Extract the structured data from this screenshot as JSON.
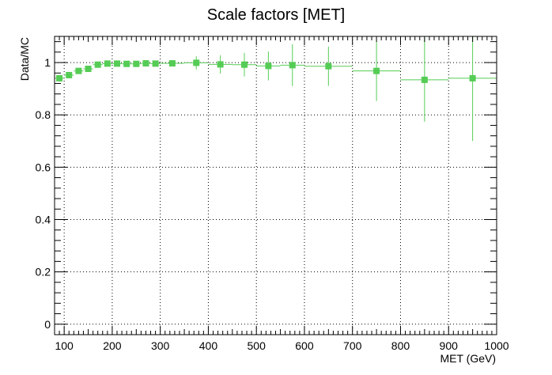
{
  "chart_data": {
    "type": "scatter",
    "title": "Scale factors [MET]",
    "xlabel": "MET (GeV)",
    "ylabel": "Data/MC",
    "xlim": [
      80,
      1000
    ],
    "ylim": [
      -0.04,
      1.1
    ],
    "grid": true,
    "legend": "none",
    "marker_color": "#55cc55",
    "x_ticks": [
      "100",
      "200",
      "300",
      "400",
      "500",
      "600",
      "700",
      "800",
      "900",
      "1000"
    ],
    "y_ticks": [
      "0",
      "0.2",
      "0.4",
      "0.6",
      "0.8",
      "1"
    ],
    "series": [
      {
        "points": [
          {
            "x": 90,
            "xlo": 80,
            "xhi": 100,
            "y": 0.94,
            "err": 0.006
          },
          {
            "x": 110,
            "xlo": 100,
            "xhi": 120,
            "y": 0.952,
            "err": 0.006
          },
          {
            "x": 130,
            "xlo": 120,
            "xhi": 140,
            "y": 0.968,
            "err": 0.006
          },
          {
            "x": 150,
            "xlo": 140,
            "xhi": 160,
            "y": 0.976,
            "err": 0.006
          },
          {
            "x": 170,
            "xlo": 160,
            "xhi": 180,
            "y": 0.992,
            "err": 0.006
          },
          {
            "x": 190,
            "xlo": 180,
            "xhi": 200,
            "y": 0.996,
            "err": 0.006
          },
          {
            "x": 210,
            "xlo": 200,
            "xhi": 220,
            "y": 0.996,
            "err": 0.006
          },
          {
            "x": 230,
            "xlo": 220,
            "xhi": 240,
            "y": 0.995,
            "err": 0.006
          },
          {
            "x": 250,
            "xlo": 240,
            "xhi": 260,
            "y": 0.995,
            "err": 0.007
          },
          {
            "x": 270,
            "xlo": 260,
            "xhi": 280,
            "y": 0.997,
            "err": 0.009
          },
          {
            "x": 290,
            "xlo": 280,
            "xhi": 300,
            "y": 0.996,
            "err": 0.01
          },
          {
            "x": 325,
            "xlo": 300,
            "xhi": 350,
            "y": 0.997,
            "err": 0.012
          },
          {
            "x": 375,
            "xlo": 350,
            "xhi": 400,
            "y": 0.999,
            "err": 0.025
          },
          {
            "x": 425,
            "xlo": 400,
            "xhi": 450,
            "y": 0.993,
            "err": 0.035
          },
          {
            "x": 475,
            "xlo": 450,
            "xhi": 500,
            "y": 0.992,
            "err": 0.045
          },
          {
            "x": 525,
            "xlo": 500,
            "xhi": 550,
            "y": 0.987,
            "err": 0.055
          },
          {
            "x": 575,
            "xlo": 550,
            "xhi": 600,
            "y": 0.99,
            "err": 0.08
          },
          {
            "x": 650,
            "xlo": 600,
            "xhi": 700,
            "y": 0.986,
            "err": 0.075
          },
          {
            "x": 750,
            "xlo": 700,
            "xhi": 800,
            "y": 0.968,
            "err": 0.115
          },
          {
            "x": 850,
            "xlo": 800,
            "xhi": 900,
            "y": 0.934,
            "err": 0.16
          },
          {
            "x": 950,
            "xlo": 900,
            "xhi": 1000,
            "y": 0.94,
            "err": 0.24
          }
        ]
      }
    ]
  }
}
